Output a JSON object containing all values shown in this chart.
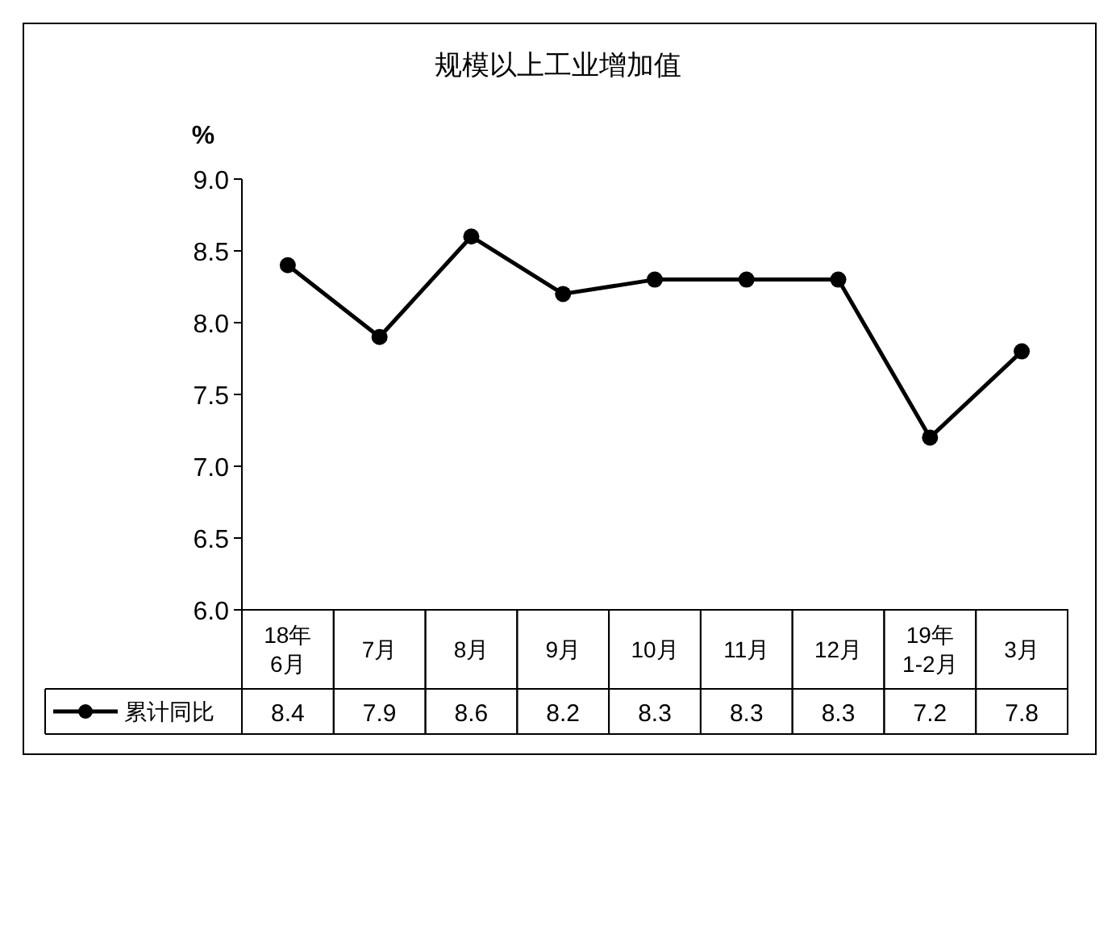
{
  "chart_data": {
    "type": "line",
    "title": "规模以上工业增加值",
    "ylabel": "%",
    "categories": [
      "18年\n6月",
      "7月",
      "8月",
      "9月",
      "10月",
      "11月",
      "12月",
      "19年\n1-2月",
      "3月"
    ],
    "series": [
      {
        "name": "累计同比",
        "color": "#000000",
        "values": [
          8.4,
          7.9,
          8.6,
          8.2,
          8.3,
          8.3,
          8.3,
          7.2,
          7.8
        ]
      }
    ],
    "ylim": [
      6.0,
      9.0
    ],
    "yticks": [
      {
        "value": 6,
        "label": "6.0"
      },
      {
        "value": 6.5,
        "label": "6.5"
      },
      {
        "value": 7,
        "label": "7.0"
      },
      {
        "value": 7.5,
        "label": "7.5"
      },
      {
        "value": 8,
        "label": "8.0"
      },
      {
        "value": 8.5,
        "label": "8.5"
      },
      {
        "value": 9,
        "label": "9.0"
      }
    ],
    "marker": "circle",
    "line_style": "solid",
    "data_labels": true,
    "legend": "bottom left",
    "grid": false
  }
}
